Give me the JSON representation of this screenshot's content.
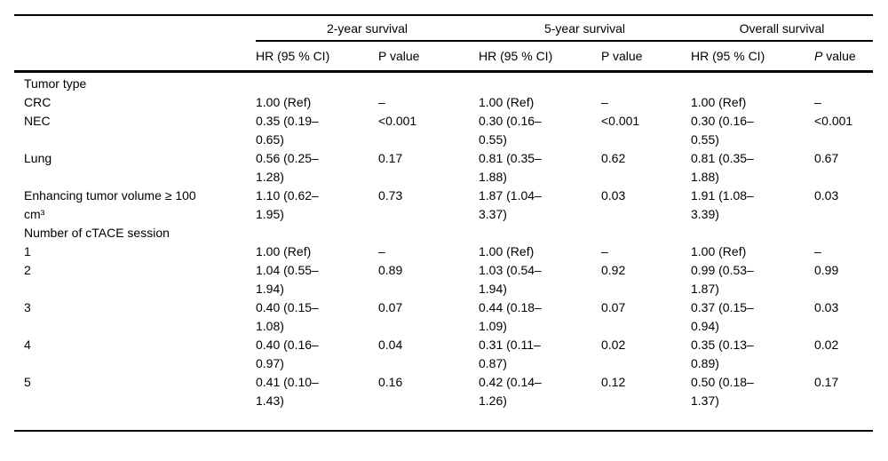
{
  "colors": {
    "background": "#ffffff",
    "text": "#000000",
    "rule": "#000000"
  },
  "table": {
    "col_groups": [
      {
        "label": "2-year survival"
      },
      {
        "label": "5-year survival"
      },
      {
        "label": "Overall survival"
      }
    ],
    "sub_headers": [
      {
        "text": "HR (95 % CI)",
        "italic_first_letter": false
      },
      {
        "text": "P value",
        "italic_first_letter": false
      },
      {
        "text": "HR (95 % CI)",
        "italic_first_letter": false
      },
      {
        "text": "P value",
        "italic_first_letter": false
      },
      {
        "text": "HR (95 % CI)",
        "italic_first_letter": false
      },
      {
        "text": "P value",
        "italic_first_letter": true
      }
    ],
    "rows": [
      {
        "label": "Tumor type",
        "section": true,
        "cells": [
          "",
          "",
          "",
          "",
          "",
          ""
        ]
      },
      {
        "label": "CRC",
        "section": false,
        "cells": [
          "1.00 (Ref)",
          "–",
          "1.00 (Ref)",
          "–",
          "1.00 (Ref)",
          "–"
        ]
      },
      {
        "label": "NEC",
        "section": false,
        "cells": [
          "0.35 (0.19–\n0.65)",
          "<0.001",
          "0.30 (0.16–\n0.55)",
          "<0.001",
          "0.30 (0.16–\n0.55)",
          "<0.001"
        ]
      },
      {
        "label": "Lung",
        "section": false,
        "cells": [
          "0.56 (0.25–\n1.28)",
          "0.17",
          "0.81 (0.35–\n1.88)",
          "0.62",
          "0.81 (0.35–\n1.88)",
          "0.67"
        ]
      },
      {
        "label": "Enhancing tumor volume ≥ 100\ncm³",
        "section": false,
        "cells": [
          "1.10 (0.62–\n1.95)",
          "0.73",
          "1.87 (1.04–\n3.37)",
          "0.03",
          "1.91 (1.08–\n3.39)",
          "0.03"
        ]
      },
      {
        "label": "Number of cTACE session",
        "section": true,
        "cells": [
          "",
          "",
          "",
          "",
          "",
          ""
        ]
      },
      {
        "label": "1",
        "section": false,
        "cells": [
          "1.00 (Ref)",
          "–",
          "1.00 (Ref)",
          "–",
          "1.00 (Ref)",
          "–"
        ]
      },
      {
        "label": "2",
        "section": false,
        "cells": [
          "1.04 (0.55–\n1.94)",
          "0.89",
          "1.03 (0.54–\n1.94)",
          "0.92",
          "0.99 (0.53–\n1.87)",
          "0.99"
        ]
      },
      {
        "label": "3",
        "section": false,
        "cells": [
          "0.40 (0.15–\n1.08)",
          "0.07",
          "0.44 (0.18–\n1.09)",
          "0.07",
          "0.37 (0.15–\n0.94)",
          "0.03"
        ]
      },
      {
        "label": "4",
        "section": false,
        "cells": [
          "0.40 (0.16–\n0.97)",
          "0.04",
          "0.31 (0.11–\n0.87)",
          "0.02",
          "0.35 (0.13–\n0.89)",
          "0.02"
        ]
      },
      {
        "label": "5",
        "section": false,
        "cells": [
          "0.41 (0.10–\n1.43)",
          "0.16",
          "0.42 (0.14–\n1.26)",
          "0.12",
          "0.50 (0.18–\n1.37)",
          "0.17"
        ]
      }
    ]
  }
}
